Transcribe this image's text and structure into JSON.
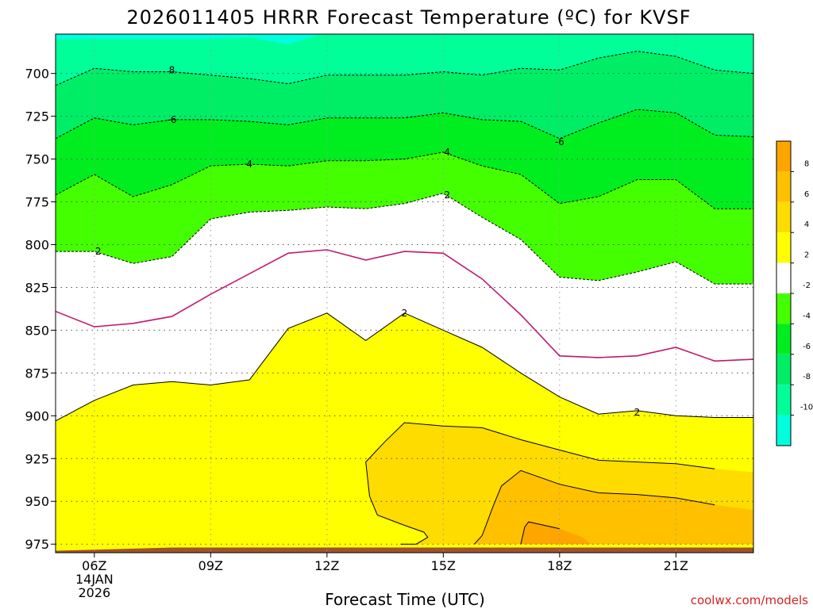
{
  "title": "2026011405 HRRR Forecast Temperature (ºC) for KVSF",
  "credit": "coolwx.com/models",
  "chart_data": {
    "type": "contour",
    "title": "2026011405 HRRR Forecast Temperature (ºC) for KVSF",
    "xlabel": "Forecast Time (UTC)",
    "ylabel": "",
    "x_unit": "hour",
    "xlim": [
      5,
      23
    ],
    "y_unit": "hPa",
    "ylim": [
      980,
      677
    ],
    "x_ticks": [
      {
        "x": 6,
        "label": "06Z",
        "date_line1": "14JAN",
        "date_line2": "2026"
      },
      {
        "x": 9,
        "label": "09Z"
      },
      {
        "x": 12,
        "label": "12Z"
      },
      {
        "x": 15,
        "label": "15Z"
      },
      {
        "x": 18,
        "label": "18Z"
      },
      {
        "x": 21,
        "label": "21Z"
      }
    ],
    "y_ticks": [
      700,
      725,
      750,
      775,
      800,
      825,
      850,
      875,
      900,
      925,
      950,
      975
    ],
    "grid": "dotted",
    "colorbar": {
      "labels": [
        "8",
        "6",
        "4",
        "2",
        "-2",
        "-4",
        "-6",
        "-8",
        "-10"
      ],
      "bins": [
        {
          "lo": 8,
          "hi": 10,
          "color": "#ffa500"
        },
        {
          "lo": 6,
          "hi": 8,
          "color": "#ffc000"
        },
        {
          "lo": 4,
          "hi": 6,
          "color": "#ffdc00"
        },
        {
          "lo": 2,
          "hi": 4,
          "color": "#ffff00"
        },
        {
          "lo": -2,
          "hi": 2,
          "color": "#ffffff"
        },
        {
          "lo": -4,
          "hi": -2,
          "color": "#44ff00"
        },
        {
          "lo": -6,
          "hi": -4,
          "color": "#00ee20"
        },
        {
          "lo": -8,
          "hi": -6,
          "color": "#00ee66"
        },
        {
          "lo": -10,
          "hi": -8,
          "color": "#00ff99"
        },
        {
          "lo": -12,
          "hi": -10,
          "color": "#00ffdd"
        }
      ]
    },
    "surface_color": "#a0522d",
    "surface_top_hpa": 975,
    "x": [
      5,
      6,
      7,
      8,
      9,
      10,
      11,
      12,
      13,
      14,
      15,
      16,
      17,
      18,
      19,
      20,
      21,
      22,
      23
    ],
    "contours": [
      {
        "level": -8,
        "style": "dashed",
        "color": "#000000",
        "fill": "#00ee66",
        "label_at": 8,
        "y": [
          707,
          697,
          699,
          699,
          701,
          703,
          706,
          701,
          701,
          701,
          699,
          701,
          697,
          698,
          691,
          687,
          690,
          698,
          700
        ]
      },
      {
        "level": -6,
        "style": "dashed",
        "color": "#000000",
        "fill": "#00ee20",
        "label_at": 8,
        "y": [
          738,
          726,
          730,
          727,
          727,
          728,
          730,
          726,
          726,
          726,
          723,
          727,
          728,
          738,
          729,
          721,
          723,
          736,
          737
        ]
      },
      {
        "level": -4,
        "style": "dashed",
        "color": "#000000",
        "fill": "#44ff00",
        "label_at": 10,
        "y": [
          771,
          759,
          772,
          765,
          754,
          753,
          754,
          751,
          751,
          750,
          746,
          754,
          759,
          776,
          772,
          762,
          762,
          779,
          779
        ]
      },
      {
        "level": -2,
        "style": "dashed",
        "color": "#000000",
        "fill": "#ffffff",
        "y": [
          804,
          804,
          811,
          807,
          785,
          781,
          780,
          778,
          779,
          776,
          770,
          784,
          797,
          819,
          821,
          816,
          810,
          823,
          823
        ]
      },
      {
        "level": 0,
        "style": "solid",
        "color": "#c0186e",
        "y": [
          839,
          848,
          846,
          842,
          829,
          817,
          805,
          803,
          809,
          804,
          805,
          820,
          841,
          865,
          866,
          865,
          860,
          868,
          867
        ]
      },
      {
        "level": 2,
        "style": "solid",
        "color": "#000000",
        "fill": "#ffff00",
        "label_at": 14,
        "y": [
          903,
          891,
          882,
          880,
          882,
          879,
          849,
          840,
          856,
          840,
          850,
          860,
          875,
          889,
          899,
          897,
          900,
          901,
          901
        ]
      }
    ],
    "closed_contours": [
      {
        "level": 4,
        "fill": "#ffdc00",
        "color": "#000000",
        "points": [
          [
            13.9,
            975
          ],
          [
            14.3,
            975
          ],
          [
            14.6,
            971
          ],
          [
            14.5,
            968
          ],
          [
            14.0,
            964
          ],
          [
            13.3,
            958
          ],
          [
            13.1,
            947
          ],
          [
            13.0,
            927
          ],
          [
            13.5,
            915
          ],
          [
            14.0,
            904
          ],
          [
            15.0,
            906
          ],
          [
            16.0,
            907
          ],
          [
            17.0,
            914
          ],
          [
            18.0,
            920
          ],
          [
            19.0,
            926
          ],
          [
            20.0,
            927
          ],
          [
            21.0,
            928
          ],
          [
            22.0,
            931
          ],
          [
            23.0,
            933
          ],
          [
            23.0,
            975
          ]
        ]
      },
      {
        "level": 6,
        "fill": "#ffc000",
        "color": "#000000",
        "points": [
          [
            15.8,
            975
          ],
          [
            16.0,
            970
          ],
          [
            16.1,
            964
          ],
          [
            16.3,
            952
          ],
          [
            16.5,
            941
          ],
          [
            17.0,
            932
          ],
          [
            18.0,
            940
          ],
          [
            19.0,
            945
          ],
          [
            20.0,
            946
          ],
          [
            21.0,
            948
          ],
          [
            22.0,
            952
          ],
          [
            23.0,
            955
          ],
          [
            23.0,
            975
          ]
        ]
      },
      {
        "level": 8,
        "fill": "#ffa500",
        "color": "#000000",
        "points": [
          [
            17.0,
            975
          ],
          [
            17.1,
            965
          ],
          [
            17.2,
            962
          ],
          [
            18.0,
            966
          ],
          [
            18.6,
            971
          ],
          [
            18.8,
            975
          ]
        ]
      }
    ],
    "contour_labels": [
      {
        "text": "8",
        "x": 8.0,
        "y": 698
      },
      {
        "text": "-6",
        "x": 8.0,
        "y": 727
      },
      {
        "text": "4",
        "x": 10.0,
        "y": 753
      },
      {
        "text": "2",
        "x": 6.1,
        "y": 804
      },
      {
        "text": "-6",
        "x": 18.0,
        "y": 740
      },
      {
        "text": "4",
        "x": 15.1,
        "y": 746
      },
      {
        "text": "2",
        "x": 15.1,
        "y": 771
      },
      {
        "text": "2",
        "x": 14.0,
        "y": 840
      },
      {
        "text": "2",
        "x": 20.0,
        "y": 898
      }
    ]
  }
}
